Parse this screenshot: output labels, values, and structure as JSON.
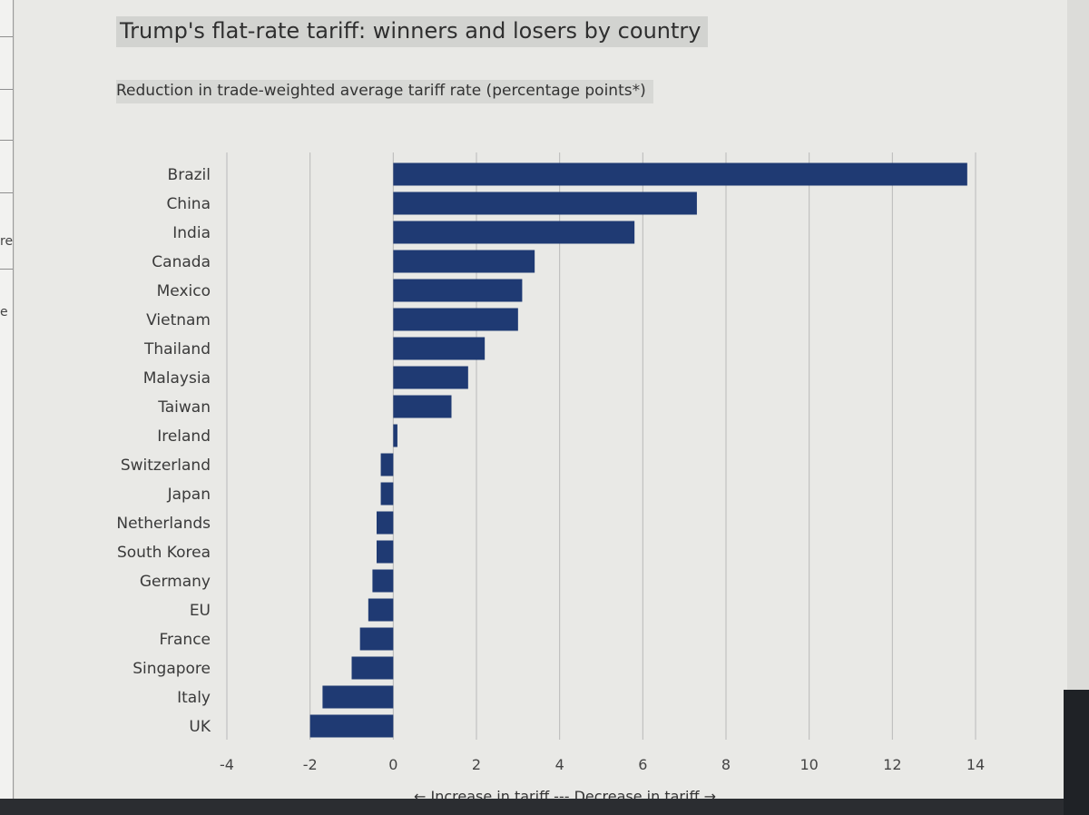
{
  "title": "Trump's flat-rate tariff: winners and losers by country",
  "subtitle": "Reduction in trade-weighted average tariff rate (percentage points*)",
  "x_caption": "← Increase in tariff --- Decrease in tariff →",
  "sidebar_fragments": [
    "re",
    "e"
  ],
  "colors": {
    "bar": "#1f3a73",
    "grid": "#b9b9b9",
    "background": "#e9e9e6"
  },
  "chart_data": {
    "type": "bar",
    "orientation": "horizontal",
    "title": "Trump's flat-rate tariff: winners and losers by country",
    "subtitle": "Reduction in trade-weighted average tariff rate (percentage points*)",
    "xlabel": "← Increase in tariff --- Decrease in tariff →",
    "ylabel": "",
    "categories": [
      "Brazil",
      "China",
      "India",
      "Canada",
      "Mexico",
      "Vietnam",
      "Thailand",
      "Malaysia",
      "Taiwan",
      "Ireland",
      "Switzerland",
      "Japan",
      "Netherlands",
      "South Korea",
      "Germany",
      "EU",
      "France",
      "Singapore",
      "Italy",
      "UK"
    ],
    "values": [
      13.8,
      7.3,
      5.8,
      3.4,
      3.1,
      3.0,
      2.2,
      1.8,
      1.4,
      0.1,
      -0.3,
      -0.3,
      -0.4,
      -0.4,
      -0.5,
      -0.6,
      -0.8,
      -1.0,
      -1.7,
      -2.0
    ],
    "xlim": [
      -4,
      14
    ],
    "xticks": [
      -4,
      -2,
      0,
      2,
      4,
      6,
      8,
      10,
      12,
      14
    ],
    "grid": true,
    "legend": "none"
  }
}
